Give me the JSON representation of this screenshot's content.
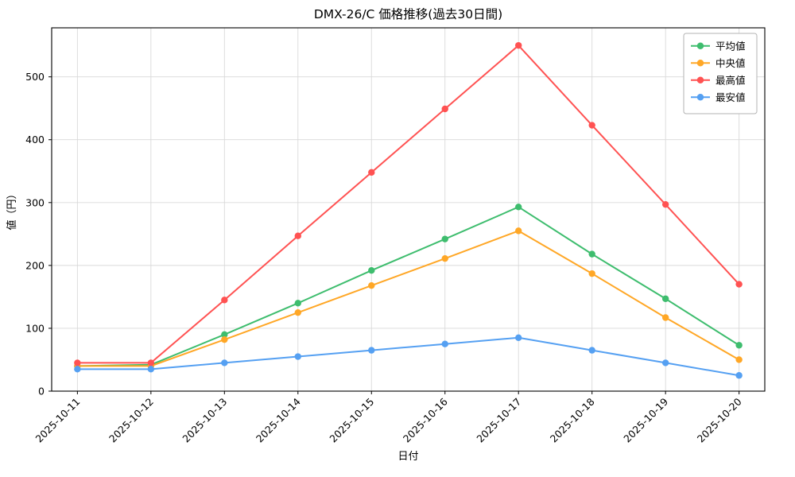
{
  "figure": {
    "title": "DMX-26/C 価格推移(過去30日間)",
    "xlabel": "日付",
    "ylabel": "値（円）"
  },
  "chart_data": {
    "type": "line",
    "title": "DMX-26/C 価格推移(過去30日間)",
    "xlabel": "日付",
    "ylabel": "値（円）",
    "x": [
      "2025-10-11",
      "2025-10-12",
      "2025-10-13",
      "2025-10-14",
      "2025-10-15",
      "2025-10-16",
      "2025-10-17",
      "2025-10-18",
      "2025-10-19",
      "2025-10-20"
    ],
    "series": [
      {
        "name": "平均値",
        "color": "#3ebd6e",
        "values": [
          40,
          42,
          90,
          140,
          192,
          242,
          293,
          218,
          147,
          73
        ]
      },
      {
        "name": "中央値",
        "color": "#ffa726",
        "values": [
          40,
          40,
          82,
          125,
          168,
          211,
          255,
          187,
          117,
          50
        ]
      },
      {
        "name": "最高値",
        "color": "#ff5252",
        "values": [
          45,
          45,
          145,
          247,
          348,
          449,
          550,
          423,
          297,
          170
        ]
      },
      {
        "name": "最安値",
        "color": "#55a0f2",
        "values": [
          35,
          35,
          45,
          55,
          65,
          75,
          85,
          65,
          45,
          25
        ]
      }
    ],
    "ylim": [
      0,
      578
    ],
    "yticks": [
      0,
      100,
      200,
      300,
      400,
      500
    ],
    "grid": true,
    "legend_position": "upper right",
    "grid_color": "#d9d9d9",
    "spine_color": "#000000"
  }
}
